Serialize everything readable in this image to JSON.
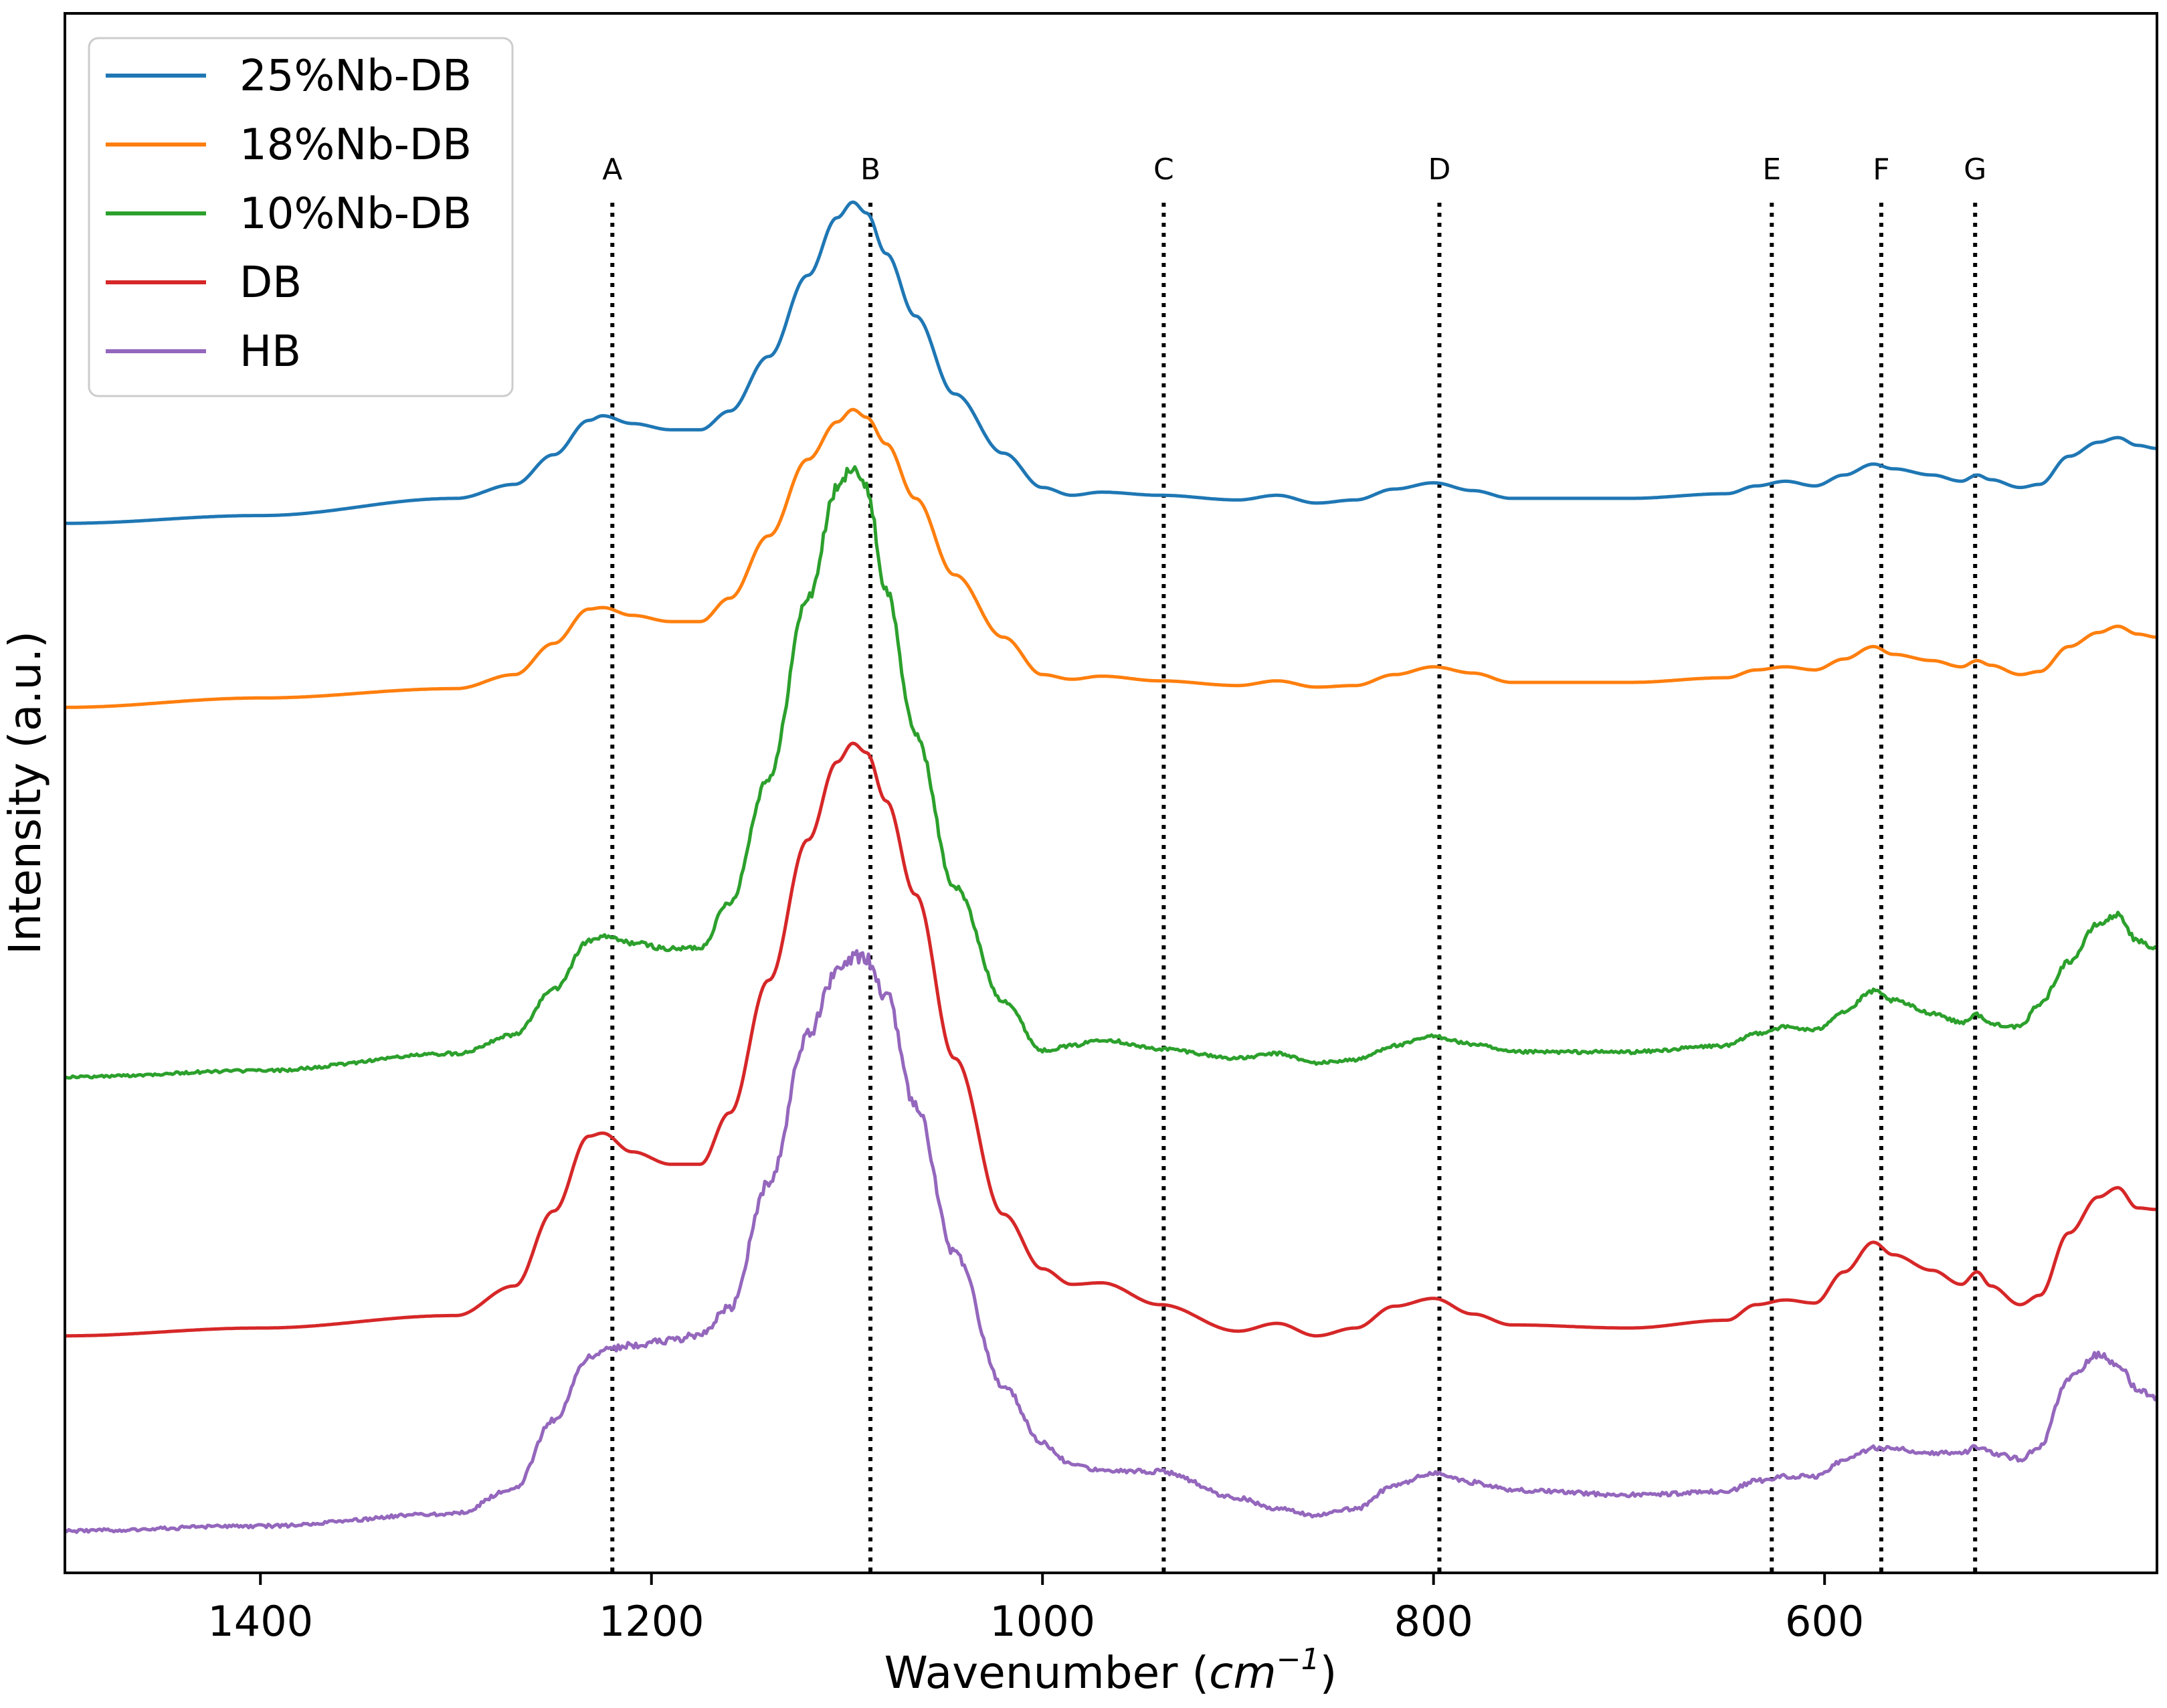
{
  "chart_data": {
    "type": "line",
    "title": "",
    "xlabel": "Wavenumber",
    "xlabel_unit_base": "cm",
    "xlabel_unit_exp": "−1",
    "ylabel": "Intensity (a.u.)",
    "xlim": [
      1500,
      430
    ],
    "ylim": [
      0,
      1
    ],
    "x_inverted": true,
    "y_ticks_shown": false,
    "x_ticks": [
      1400,
      1200,
      1000,
      800,
      600
    ],
    "x_tick_labels": [
      "1400",
      "1200",
      "1000",
      "800",
      "600"
    ],
    "legend_position": "top-left",
    "reference_lines": [
      {
        "label": "A",
        "x": 1220,
        "style": "dotted"
      },
      {
        "label": "B",
        "x": 1088,
        "style": "dotted"
      },
      {
        "label": "C",
        "x": 938,
        "style": "dotted"
      },
      {
        "label": "D",
        "x": 797,
        "style": "dotted"
      },
      {
        "label": "E",
        "x": 627,
        "style": "dotted"
      },
      {
        "label": "F",
        "x": 571,
        "style": "dotted"
      },
      {
        "label": "G",
        "x": 523,
        "style": "dotted"
      }
    ],
    "series": [
      {
        "name": "25%Nb-DB",
        "color": "#1f77b4",
        "noise": 0,
        "x": [
          1500,
          1400,
          1300,
          1270,
          1250,
          1232,
          1225,
          1210,
          1190,
          1175,
          1160,
          1140,
          1120,
          1105,
          1097,
          1090,
          1080,
          1065,
          1045,
          1020,
          1000,
          985,
          970,
          940,
          900,
          880,
          860,
          840,
          820,
          800,
          780,
          760,
          700,
          650,
          635,
          620,
          605,
          590,
          575,
          565,
          545,
          530,
          522,
          515,
          500,
          490,
          475,
          460,
          450,
          440,
          430
        ],
        "y": [
          0.673,
          0.678,
          0.689,
          0.698,
          0.717,
          0.739,
          0.742,
          0.737,
          0.733,
          0.733,
          0.745,
          0.78,
          0.832,
          0.869,
          0.879,
          0.872,
          0.846,
          0.806,
          0.756,
          0.718,
          0.696,
          0.691,
          0.693,
          0.691,
          0.688,
          0.691,
          0.686,
          0.688,
          0.695,
          0.699,
          0.694,
          0.689,
          0.689,
          0.692,
          0.697,
          0.7,
          0.697,
          0.704,
          0.711,
          0.708,
          0.704,
          0.7,
          0.704,
          0.701,
          0.696,
          0.698,
          0.716,
          0.725,
          0.728,
          0.723,
          0.721
        ]
      },
      {
        "name": "18%Nb-DB",
        "color": "#ff7f0e",
        "noise": 0,
        "x": [
          1500,
          1400,
          1300,
          1270,
          1250,
          1232,
          1225,
          1210,
          1190,
          1175,
          1160,
          1140,
          1120,
          1105,
          1097,
          1090,
          1080,
          1065,
          1045,
          1020,
          1000,
          985,
          970,
          940,
          900,
          880,
          860,
          840,
          820,
          800,
          780,
          760,
          700,
          650,
          635,
          620,
          605,
          590,
          575,
          565,
          545,
          530,
          522,
          515,
          500,
          490,
          475,
          460,
          450,
          440,
          430
        ],
        "y": [
          0.555,
          0.561,
          0.567,
          0.576,
          0.596,
          0.618,
          0.619,
          0.614,
          0.61,
          0.61,
          0.625,
          0.665,
          0.714,
          0.738,
          0.746,
          0.741,
          0.724,
          0.689,
          0.64,
          0.6,
          0.576,
          0.573,
          0.575,
          0.572,
          0.569,
          0.572,
          0.568,
          0.569,
          0.576,
          0.581,
          0.577,
          0.571,
          0.571,
          0.574,
          0.579,
          0.581,
          0.579,
          0.586,
          0.594,
          0.589,
          0.585,
          0.581,
          0.585,
          0.582,
          0.576,
          0.578,
          0.594,
          0.603,
          0.607,
          0.602,
          0.6
        ]
      },
      {
        "name": "10%Nb-DB",
        "color": "#2ca02c",
        "noise": 0.006,
        "x": [
          1500,
          1400,
          1300,
          1270,
          1250,
          1232,
          1225,
          1210,
          1190,
          1175,
          1160,
          1140,
          1120,
          1105,
          1097,
          1090,
          1080,
          1065,
          1045,
          1020,
          1000,
          985,
          970,
          940,
          900,
          880,
          860,
          840,
          820,
          800,
          780,
          760,
          700,
          650,
          635,
          620,
          605,
          590,
          575,
          565,
          545,
          530,
          522,
          515,
          500,
          490,
          475,
          460,
          450,
          440,
          430
        ],
        "y": [
          0.318,
          0.322,
          0.333,
          0.345,
          0.374,
          0.405,
          0.408,
          0.404,
          0.4,
          0.401,
          0.43,
          0.51,
          0.625,
          0.695,
          0.71,
          0.695,
          0.63,
          0.538,
          0.44,
          0.367,
          0.335,
          0.338,
          0.342,
          0.336,
          0.33,
          0.333,
          0.327,
          0.329,
          0.338,
          0.344,
          0.339,
          0.334,
          0.334,
          0.338,
          0.346,
          0.35,
          0.348,
          0.36,
          0.373,
          0.367,
          0.359,
          0.353,
          0.358,
          0.352,
          0.35,
          0.365,
          0.392,
          0.416,
          0.422,
          0.405,
          0.4
        ]
      },
      {
        "name": "DB",
        "color": "#d62728",
        "noise": 0,
        "x": [
          1500,
          1400,
          1300,
          1270,
          1250,
          1232,
          1225,
          1210,
          1190,
          1175,
          1160,
          1140,
          1120,
          1105,
          1097,
          1090,
          1080,
          1065,
          1045,
          1020,
          1000,
          985,
          970,
          940,
          900,
          880,
          860,
          840,
          820,
          800,
          780,
          760,
          700,
          650,
          635,
          620,
          605,
          590,
          575,
          565,
          545,
          530,
          522,
          515,
          500,
          490,
          475,
          460,
          450,
          440,
          430
        ],
        "y": [
          0.152,
          0.157,
          0.165,
          0.184,
          0.232,
          0.28,
          0.282,
          0.27,
          0.262,
          0.262,
          0.295,
          0.38,
          0.47,
          0.52,
          0.532,
          0.526,
          0.495,
          0.435,
          0.33,
          0.23,
          0.195,
          0.185,
          0.186,
          0.172,
          0.155,
          0.16,
          0.152,
          0.157,
          0.171,
          0.176,
          0.166,
          0.159,
          0.157,
          0.162,
          0.172,
          0.175,
          0.173,
          0.193,
          0.212,
          0.204,
          0.194,
          0.185,
          0.193,
          0.184,
          0.172,
          0.178,
          0.218,
          0.241,
          0.247,
          0.234,
          0.233
        ]
      },
      {
        "name": "HB",
        "color": "#9467bd",
        "noise": 0.007,
        "x": [
          1500,
          1400,
          1300,
          1270,
          1250,
          1232,
          1225,
          1210,
          1190,
          1175,
          1160,
          1140,
          1120,
          1105,
          1097,
          1090,
          1080,
          1065,
          1045,
          1020,
          1000,
          985,
          970,
          940,
          900,
          880,
          860,
          840,
          820,
          800,
          780,
          760,
          700,
          650,
          635,
          620,
          605,
          590,
          575,
          565,
          545,
          530,
          522,
          515,
          500,
          490,
          475,
          460,
          450,
          440,
          430
        ],
        "y": [
          0.027,
          0.03,
          0.038,
          0.054,
          0.098,
          0.138,
          0.143,
          0.146,
          0.149,
          0.153,
          0.17,
          0.25,
          0.345,
          0.385,
          0.395,
          0.393,
          0.37,
          0.3,
          0.205,
          0.12,
          0.083,
          0.07,
          0.066,
          0.065,
          0.048,
          0.041,
          0.037,
          0.041,
          0.056,
          0.064,
          0.058,
          0.053,
          0.05,
          0.052,
          0.059,
          0.062,
          0.062,
          0.072,
          0.08,
          0.08,
          0.077,
          0.077,
          0.081,
          0.077,
          0.073,
          0.081,
          0.125,
          0.14,
          0.134,
          0.118,
          0.112
        ]
      }
    ]
  }
}
